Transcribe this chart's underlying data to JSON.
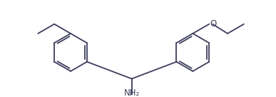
{
  "bg_color": "#ffffff",
  "line_color": "#3d3d5c",
  "line_width": 1.3,
  "figsize": [
    3.87,
    1.36
  ],
  "dpi": 100,
  "NH2_label": "NH₂",
  "O_label": "O",
  "NH2_fontsize": 8.5,
  "O_fontsize": 8.5
}
